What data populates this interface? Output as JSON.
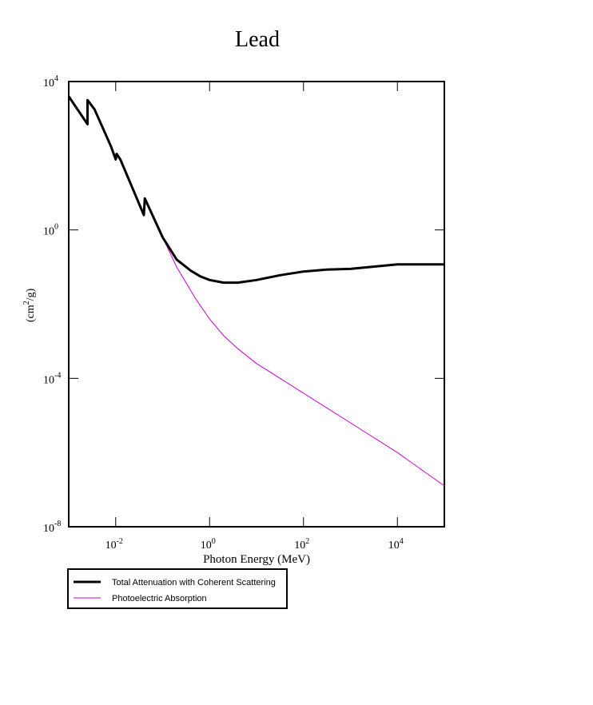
{
  "chart_data": {
    "type": "line",
    "title": "Lead",
    "xlabel": "Photon Energy (MeV)",
    "ylabel": "(cm2/g)",
    "ylabel_parts": {
      "base": "(cm",
      "sup": "2",
      "tail": "/g)"
    },
    "x_scale": "log",
    "y_scale": "log",
    "x_log10_range": [
      -3,
      5
    ],
    "y_log10_range": [
      -8,
      4
    ],
    "x_ticks": [
      {
        "base": "10",
        "exp": "-2",
        "log10": -2
      },
      {
        "base": "10",
        "exp": "0",
        "log10": 0
      },
      {
        "base": "10",
        "exp": "2",
        "log10": 2
      },
      {
        "base": "10",
        "exp": "4",
        "log10": 4
      }
    ],
    "y_ticks": [
      {
        "base": "10",
        "exp": "4",
        "log10": 4
      },
      {
        "base": "10",
        "exp": "0",
        "log10": 0
      },
      {
        "base": "10",
        "exp": "-4",
        "log10": -4
      },
      {
        "base": "10",
        "exp": "-8",
        "log10": -8
      }
    ],
    "series": [
      {
        "name": "Photoelectric Absorption",
        "color": "#cc00cc",
        "points_log10": [
          [
            -3.0,
            3.6
          ],
          [
            -2.6,
            2.85
          ],
          [
            -2.6,
            3.5
          ],
          [
            -2.45,
            3.25
          ],
          [
            -2.1,
            2.25
          ],
          [
            -2.0,
            1.9
          ],
          [
            -1.98,
            2.05
          ],
          [
            -1.9,
            1.9
          ],
          [
            -1.6,
            1.0
          ],
          [
            -1.4,
            0.4
          ],
          [
            -1.38,
            0.85
          ],
          [
            -1.2,
            0.35
          ],
          [
            -1.0,
            -0.2
          ],
          [
            -0.7,
            -1.0
          ],
          [
            -0.3,
            -1.85
          ],
          [
            0.0,
            -2.4
          ],
          [
            0.3,
            -2.85
          ],
          [
            0.6,
            -3.2
          ],
          [
            1.0,
            -3.6
          ],
          [
            1.5,
            -4.0
          ],
          [
            2.0,
            -4.4
          ],
          [
            3.0,
            -5.2
          ],
          [
            4.0,
            -6.0
          ],
          [
            5.0,
            -6.9
          ]
        ]
      },
      {
        "name": "Total Attenuation with Coherent Scattering",
        "color": "#000000",
        "points_log10": [
          [
            -3.0,
            3.6
          ],
          [
            -2.6,
            2.85
          ],
          [
            -2.6,
            3.5
          ],
          [
            -2.45,
            3.25
          ],
          [
            -2.1,
            2.25
          ],
          [
            -2.0,
            1.9
          ],
          [
            -1.98,
            2.05
          ],
          [
            -1.9,
            1.9
          ],
          [
            -1.6,
            1.0
          ],
          [
            -1.4,
            0.4
          ],
          [
            -1.38,
            0.85
          ],
          [
            -1.2,
            0.35
          ],
          [
            -1.0,
            -0.2
          ],
          [
            -0.7,
            -0.8
          ],
          [
            -0.4,
            -1.1
          ],
          [
            -0.2,
            -1.25
          ],
          [
            0.0,
            -1.35
          ],
          [
            0.3,
            -1.42
          ],
          [
            0.6,
            -1.42
          ],
          [
            1.0,
            -1.35
          ],
          [
            1.5,
            -1.22
          ],
          [
            2.0,
            -1.12
          ],
          [
            2.5,
            -1.07
          ],
          [
            3.0,
            -1.05
          ],
          [
            4.0,
            -0.93
          ],
          [
            5.0,
            -0.93
          ]
        ]
      }
    ],
    "legend_placement": "bottom-left"
  }
}
